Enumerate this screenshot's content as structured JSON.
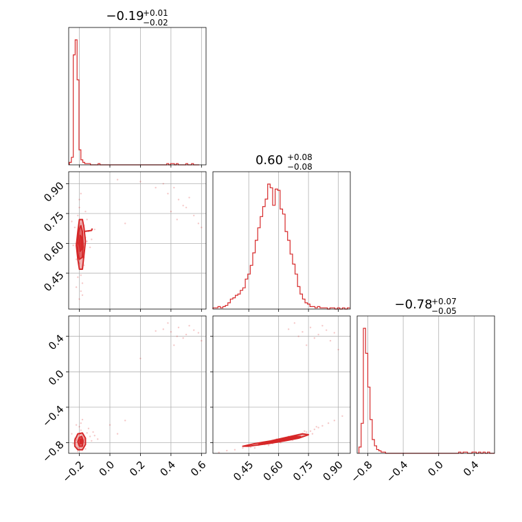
{
  "chart_data": {
    "type": "corner",
    "color": "#d62728",
    "grid": true,
    "panels": [
      {
        "row": 0,
        "col": 0,
        "type": "histogram",
        "param_index": 0,
        "title": {
          "value": "−0.19",
          "upper": "+0.01",
          "lower": "−0.02"
        },
        "xlim": [
          -0.27,
          0.63
        ],
        "bin_width": 0.0125,
        "bins_start": -0.265,
        "counts": [
          2,
          6,
          88,
          100,
          68,
          12,
          4,
          2,
          1,
          1,
          1,
          0,
          0,
          0,
          0,
          1,
          0,
          0,
          0,
          0,
          0,
          0,
          0,
          0,
          0,
          0,
          0,
          0,
          0,
          0,
          0,
          0,
          0,
          0,
          0,
          0,
          0,
          0,
          0,
          0,
          0,
          0,
          0,
          0,
          0,
          0,
          0,
          0,
          0,
          0,
          0,
          1,
          0,
          1,
          1,
          0,
          1,
          0,
          0,
          0,
          0,
          1,
          0,
          0,
          1,
          0,
          0,
          0
        ]
      },
      {
        "row": 1,
        "col": 1,
        "type": "histogram",
        "param_index": 1,
        "title": {
          "value": "0.60",
          "upper": "+0.08",
          "lower": "−0.08"
        },
        "xlim": [
          0.27,
          0.96
        ],
        "bin_width": 0.0125,
        "bins_start": 0.27,
        "counts": [
          1,
          1,
          2,
          1,
          2,
          3,
          5,
          8,
          9,
          11,
          12,
          15,
          17,
          24,
          28,
          35,
          45,
          55,
          65,
          74,
          82,
          88,
          100,
          97,
          83,
          96,
          95,
          80,
          76,
          62,
          55,
          44,
          36,
          28,
          18,
          12,
          8,
          5,
          4,
          2,
          2,
          1,
          2,
          1,
          1,
          1,
          0,
          1,
          1,
          0,
          1,
          0,
          1,
          0,
          1
        ]
      },
      {
        "row": 2,
        "col": 2,
        "type": "histogram",
        "param_index": 2,
        "title": {
          "value": "−0.78",
          "upper": "+0.07",
          "lower": "−0.05"
        },
        "xlim": [
          -0.92,
          0.63
        ],
        "bin_width": 0.025,
        "bins_start": -0.9,
        "counts": [
          5,
          24,
          100,
          80,
          53,
          27,
          11,
          6,
          3,
          2,
          1,
          1,
          0,
          0,
          0,
          0,
          0,
          0,
          0,
          0,
          0,
          0,
          0,
          0,
          0,
          0,
          0,
          0,
          0,
          0,
          0,
          0,
          0,
          0,
          0,
          0,
          0,
          0,
          0,
          0,
          0,
          0,
          0,
          0,
          0,
          1,
          0,
          1,
          1,
          0,
          0,
          1,
          1,
          0,
          1,
          0,
          1,
          0,
          1,
          0,
          0,
          0
        ]
      },
      {
        "row": 1,
        "col": 0,
        "type": "scatter_contour",
        "x_param": 0,
        "y_param": 1,
        "xlim": [
          -0.27,
          0.63
        ],
        "ylim": [
          0.27,
          0.96
        ]
      },
      {
        "row": 2,
        "col": 0,
        "type": "scatter_contour",
        "x_param": 0,
        "y_param": 2,
        "xlim": [
          -0.27,
          0.63
        ],
        "ylim": [
          -0.92,
          0.63
        ]
      },
      {
        "row": 2,
        "col": 1,
        "type": "scatter_contour",
        "x_param": 1,
        "y_param": 2,
        "xlim": [
          0.27,
          0.96
        ],
        "ylim": [
          -0.92,
          0.63
        ]
      }
    ],
    "axes": [
      {
        "param_index": 0,
        "ticks": [
          -0.2,
          0.0,
          0.2,
          0.4,
          0.6
        ],
        "tick_labels": [
          "−0.2",
          "0.0",
          "0.2",
          "0.4",
          "0.6"
        ]
      },
      {
        "param_index": 1,
        "ticks": [
          0.45,
          0.6,
          0.75,
          0.9
        ],
        "tick_labels": [
          "0.45",
          "0.60",
          "0.75",
          "0.90"
        ]
      },
      {
        "param_index": 2,
        "ticks": [
          -0.8,
          -0.4,
          0.0,
          0.4
        ],
        "tick_labels": [
          "−0.8",
          "−0.4",
          "0.0",
          "0.4"
        ]
      }
    ],
    "samples_2d": {
      "p0_p1": [
        [
          -0.19,
          0.6
        ],
        [
          -0.2,
          0.55
        ],
        [
          -0.18,
          0.65
        ],
        [
          -0.21,
          0.62
        ],
        [
          -0.17,
          0.58
        ],
        [
          -0.19,
          0.7
        ],
        [
          -0.2,
          0.5
        ],
        [
          -0.18,
          0.72
        ],
        [
          -0.22,
          0.6
        ],
        [
          -0.16,
          0.63
        ],
        [
          -0.19,
          0.47
        ],
        [
          -0.21,
          0.74
        ],
        [
          -0.17,
          0.53
        ],
        [
          -0.2,
          0.66
        ],
        [
          -0.18,
          0.57
        ],
        [
          -0.19,
          0.44
        ],
        [
          -0.23,
          0.68
        ],
        [
          -0.15,
          0.61
        ],
        [
          -0.2,
          0.78
        ],
        [
          -0.18,
          0.4
        ],
        [
          -0.21,
          0.56
        ],
        [
          -0.19,
          0.64
        ],
        [
          -0.17,
          0.69
        ],
        [
          -0.22,
          0.52
        ],
        [
          -0.14,
          0.66
        ],
        [
          -0.24,
          0.59
        ],
        [
          -0.19,
          0.36
        ],
        [
          -0.2,
          0.82
        ],
        [
          -0.12,
          0.62
        ],
        [
          -0.25,
          0.71
        ],
        [
          -0.18,
          0.34
        ],
        [
          -0.16,
          0.76
        ],
        [
          -0.13,
          0.58
        ],
        [
          -0.21,
          0.43
        ],
        [
          -0.19,
          0.85
        ],
        [
          -0.1,
          0.67
        ],
        [
          -0.22,
          0.38
        ],
        [
          -0.17,
          0.49
        ],
        [
          -0.15,
          0.72
        ],
        [
          -0.2,
          0.32
        ],
        [
          0.42,
          0.88
        ],
        [
          0.45,
          0.82
        ],
        [
          0.5,
          0.78
        ],
        [
          0.38,
          0.85
        ],
        [
          0.55,
          0.74
        ],
        [
          0.48,
          0.79
        ],
        [
          0.35,
          0.9
        ],
        [
          0.58,
          0.7
        ],
        [
          0.4,
          0.76
        ],
        [
          0.52,
          0.83
        ],
        [
          0.44,
          0.72
        ],
        [
          0.3,
          0.88
        ],
        [
          0.2,
          0.91
        ],
        [
          0.6,
          0.68
        ],
        [
          0.1,
          0.7
        ],
        [
          0.05,
          0.92
        ]
      ],
      "p0_p2": [
        [
          -0.19,
          -0.78
        ],
        [
          -0.2,
          -0.82
        ],
        [
          -0.18,
          -0.74
        ],
        [
          -0.21,
          -0.79
        ],
        [
          -0.17,
          -0.76
        ],
        [
          -0.19,
          -0.85
        ],
        [
          -0.2,
          -0.7
        ],
        [
          -0.18,
          -0.88
        ],
        [
          -0.22,
          -0.77
        ],
        [
          -0.16,
          -0.8
        ],
        [
          -0.19,
          -0.66
        ],
        [
          -0.21,
          -0.86
        ],
        [
          -0.17,
          -0.72
        ],
        [
          -0.2,
          -0.62
        ],
        [
          -0.18,
          -0.83
        ],
        [
          -0.23,
          -0.75
        ],
        [
          -0.15,
          -0.69
        ],
        [
          -0.24,
          -0.81
        ],
        [
          -0.13,
          -0.73
        ],
        [
          -0.19,
          -0.58
        ],
        [
          -0.21,
          -0.9
        ],
        [
          -0.12,
          -0.78
        ],
        [
          -0.25,
          -0.7
        ],
        [
          -0.1,
          -0.72
        ],
        [
          -0.14,
          -0.64
        ],
        [
          -0.22,
          -0.6
        ],
        [
          -0.08,
          -0.76
        ],
        [
          -0.18,
          -0.54
        ],
        [
          -0.16,
          -0.87
        ],
        [
          -0.11,
          -0.68
        ],
        [
          0.4,
          0.45
        ],
        [
          0.45,
          0.5
        ],
        [
          0.5,
          0.42
        ],
        [
          0.38,
          0.55
        ],
        [
          0.55,
          0.47
        ],
        [
          0.48,
          0.38
        ],
        [
          0.35,
          0.48
        ],
        [
          0.58,
          0.44
        ],
        [
          0.42,
          0.3
        ],
        [
          0.52,
          0.52
        ],
        [
          0.44,
          0.4
        ],
        [
          0.3,
          0.46
        ],
        [
          0.2,
          0.15
        ],
        [
          0.6,
          0.35
        ],
        [
          0.1,
          -0.55
        ],
        [
          0.0,
          -0.6
        ],
        [
          0.05,
          -0.7
        ]
      ],
      "p1_p2": [
        [
          0.3,
          -0.91
        ],
        [
          0.34,
          -0.89
        ],
        [
          0.38,
          -0.88
        ],
        [
          0.42,
          -0.86
        ],
        [
          0.46,
          -0.85
        ],
        [
          0.5,
          -0.83
        ],
        [
          0.53,
          -0.82
        ],
        [
          0.56,
          -0.8
        ],
        [
          0.58,
          -0.79
        ],
        [
          0.6,
          -0.78
        ],
        [
          0.62,
          -0.77
        ],
        [
          0.64,
          -0.76
        ],
        [
          0.66,
          -0.74
        ],
        [
          0.68,
          -0.73
        ],
        [
          0.7,
          -0.71
        ],
        [
          0.72,
          -0.7
        ],
        [
          0.74,
          -0.68
        ],
        [
          0.76,
          -0.67
        ],
        [
          0.78,
          -0.65
        ],
        [
          0.8,
          -0.63
        ],
        [
          0.82,
          -0.61
        ],
        [
          0.85,
          -0.58
        ],
        [
          0.88,
          -0.55
        ],
        [
          0.92,
          -0.5
        ],
        [
          0.48,
          -0.86
        ],
        [
          0.55,
          -0.83
        ],
        [
          0.61,
          -0.8
        ],
        [
          0.67,
          -0.77
        ],
        [
          0.71,
          -0.74
        ],
        [
          0.77,
          -0.7
        ],
        [
          0.52,
          -0.8
        ],
        [
          0.59,
          -0.76
        ],
        [
          0.65,
          -0.73
        ],
        [
          0.73,
          -0.67
        ],
        [
          0.79,
          -0.62
        ],
        [
          0.44,
          -0.84
        ],
        [
          0.57,
          -0.81
        ],
        [
          0.69,
          -0.75
        ],
        [
          0.72,
          0.45
        ],
        [
          0.76,
          0.5
        ],
        [
          0.8,
          0.42
        ],
        [
          0.68,
          0.55
        ],
        [
          0.84,
          0.47
        ],
        [
          0.78,
          0.38
        ],
        [
          0.65,
          0.48
        ],
        [
          0.88,
          0.44
        ],
        [
          0.74,
          0.3
        ],
        [
          0.82,
          0.52
        ],
        [
          0.7,
          0.4
        ],
        [
          0.86,
          0.35
        ],
        [
          0.9,
          0.25
        ]
      ]
    },
    "contours_2d": {
      "p0_p1": [
        [
          [
            -0.2,
            0.47
          ],
          [
            -0.18,
            0.47
          ],
          [
            -0.17,
            0.54
          ],
          [
            -0.16,
            0.61
          ],
          [
            -0.17,
            0.68
          ],
          [
            -0.18,
            0.72
          ],
          [
            -0.2,
            0.72
          ],
          [
            -0.21,
            0.66
          ],
          [
            -0.22,
            0.59
          ],
          [
            -0.21,
            0.52
          ]
        ],
        [
          [
            -0.2,
            0.52
          ],
          [
            -0.18,
            0.53
          ],
          [
            -0.175,
            0.59
          ],
          [
            -0.18,
            0.66
          ],
          [
            -0.19,
            0.69
          ],
          [
            -0.205,
            0.66
          ],
          [
            -0.21,
            0.59
          ],
          [
            -0.21,
            0.55
          ]
        ],
        [
          [
            -0.195,
            0.56
          ],
          [
            -0.185,
            0.57
          ],
          [
            -0.185,
            0.63
          ],
          [
            -0.195,
            0.64
          ],
          [
            -0.2,
            0.6
          ]
        ],
        [
          [
            -0.17,
            0.66
          ],
          [
            -0.12,
            0.665
          ],
          [
            -0.115,
            0.675
          ]
        ]
      ],
      "p0_p2": [
        [
          [
            -0.21,
            -0.88
          ],
          [
            -0.18,
            -0.88
          ],
          [
            -0.16,
            -0.82
          ],
          [
            -0.16,
            -0.75
          ],
          [
            -0.18,
            -0.69
          ],
          [
            -0.21,
            -0.7
          ],
          [
            -0.23,
            -0.77
          ],
          [
            -0.23,
            -0.84
          ]
        ],
        [
          [
            -0.2,
            -0.84
          ],
          [
            -0.18,
            -0.84
          ],
          [
            -0.175,
            -0.78
          ],
          [
            -0.185,
            -0.73
          ],
          [
            -0.2,
            -0.74
          ],
          [
            -0.21,
            -0.79
          ]
        ],
        [
          [
            -0.195,
            -0.81
          ],
          [
            -0.185,
            -0.81
          ],
          [
            -0.185,
            -0.76
          ],
          [
            -0.195,
            -0.76
          ]
        ]
      ],
      "p1_p2": [
        [
          [
            0.45,
            -0.84
          ],
          [
            0.55,
            -0.81
          ],
          [
            0.63,
            -0.78
          ],
          [
            0.7,
            -0.75
          ],
          [
            0.75,
            -0.71
          ],
          [
            0.72,
            -0.7
          ],
          [
            0.64,
            -0.74
          ],
          [
            0.56,
            -0.78
          ],
          [
            0.48,
            -0.81
          ],
          [
            0.42,
            -0.84
          ]
        ],
        [
          [
            0.5,
            -0.82
          ],
          [
            0.58,
            -0.79
          ],
          [
            0.65,
            -0.76
          ],
          [
            0.71,
            -0.73
          ],
          [
            0.68,
            -0.73
          ],
          [
            0.6,
            -0.77
          ],
          [
            0.52,
            -0.8
          ]
        ],
        [
          [
            0.56,
            -0.8
          ],
          [
            0.62,
            -0.78
          ],
          [
            0.66,
            -0.76
          ],
          [
            0.62,
            -0.77
          ]
        ]
      ]
    }
  }
}
